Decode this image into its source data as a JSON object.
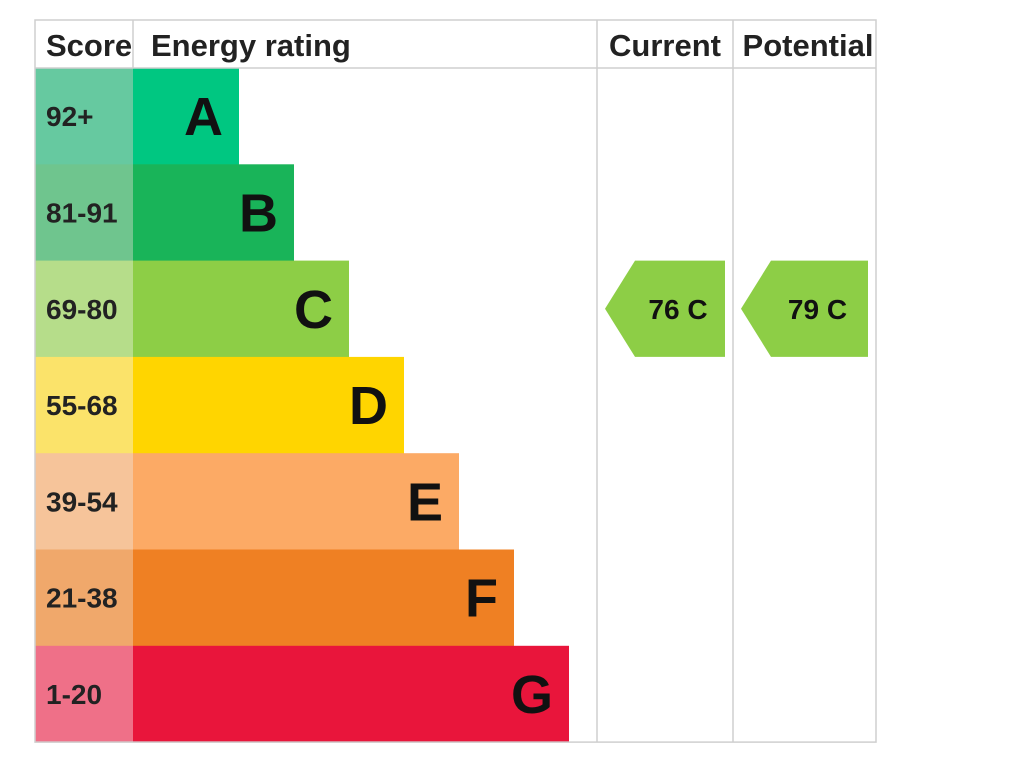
{
  "chart_data": {
    "type": "bar",
    "headers": {
      "score": "Score",
      "rating": "Energy rating",
      "current": "Current",
      "potential": "Potential"
    },
    "bands": [
      {
        "letter": "A",
        "range": "92+",
        "color": "#00c781",
        "score_bg": "#66c9a0"
      },
      {
        "letter": "B",
        "range": "81-91",
        "color": "#19b459",
        "score_bg": "#6fc58e"
      },
      {
        "letter": "C",
        "range": "69-80",
        "color": "#8dce46",
        "score_bg": "#b6dd8a"
      },
      {
        "letter": "D",
        "range": "55-68",
        "color": "#ffd500",
        "score_bg": "#fbe36a"
      },
      {
        "letter": "E",
        "range": "39-54",
        "color": "#fcaa65",
        "score_bg": "#f6c49a"
      },
      {
        "letter": "F",
        "range": "21-38",
        "color": "#ef8023",
        "score_bg": "#f0a86b"
      },
      {
        "letter": "G",
        "range": "1-20",
        "color": "#e9153b",
        "score_bg": "#ef7088"
      }
    ],
    "current": {
      "value": 76,
      "band": "C",
      "label": "76 C",
      "color": "#8dce46"
    },
    "potential": {
      "value": 79,
      "band": "C",
      "label": "79 C",
      "color": "#8dce46"
    }
  }
}
